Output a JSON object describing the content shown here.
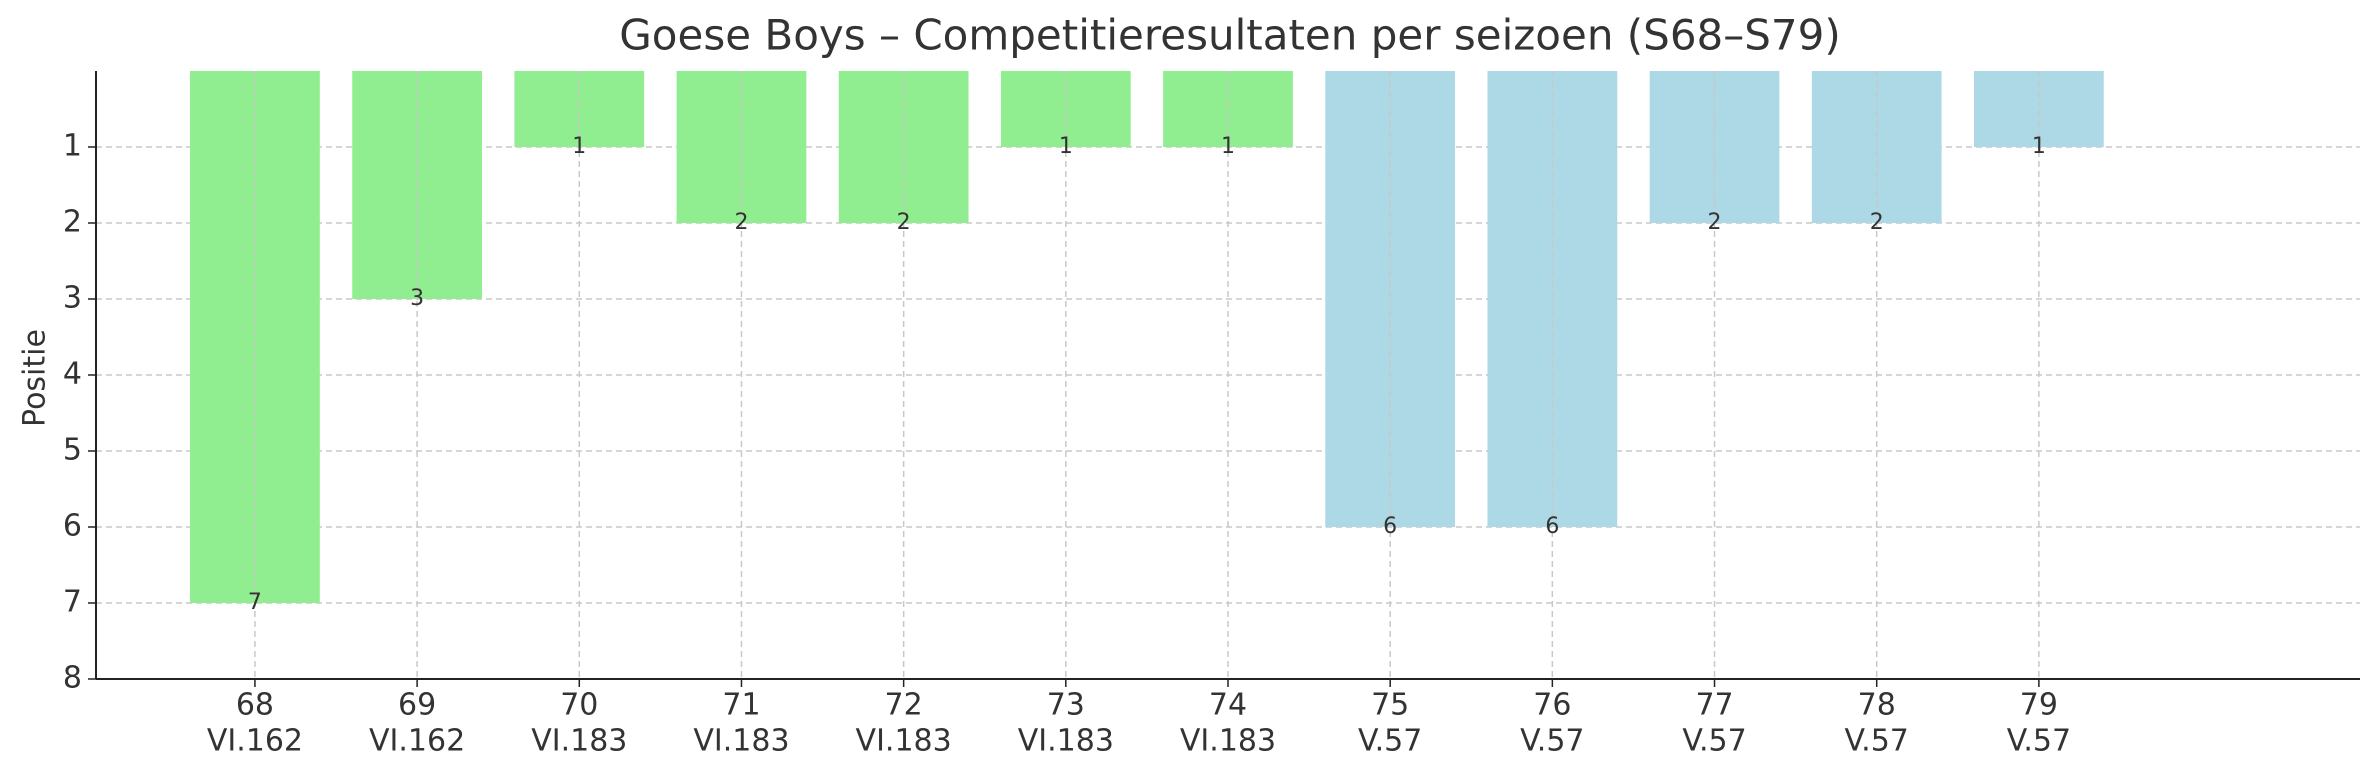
{
  "chart_data": {
    "type": "bar",
    "title": "Goese Boys – Competitieresultaten per seizoen (S68–S79)",
    "y_label": "Positie",
    "categories": [
      "68",
      "69",
      "70",
      "71",
      "72",
      "73",
      "74",
      "75",
      "76",
      "77",
      "78",
      "79"
    ],
    "divisions": [
      "VI.162",
      "VI.162",
      "VI.183",
      "VI.183",
      "VI.183",
      "VI.183",
      "VI.183",
      "V.57",
      "V.57",
      "V.57",
      "V.57",
      "V.57"
    ],
    "values": [
      7,
      3,
      1,
      2,
      2,
      1,
      1,
      6,
      6,
      2,
      2,
      1
    ],
    "colors": [
      "#90ee90",
      "#90ee90",
      "#90ee90",
      "#90ee90",
      "#90ee90",
      "#90ee90",
      "#90ee90",
      "#add8e6",
      "#add8e6",
      "#add8e6",
      "#add8e6",
      "#add8e6"
    ],
    "ylim": [
      0,
      8
    ],
    "yticks": [
      1,
      2,
      3,
      4,
      5,
      6,
      7,
      8
    ],
    "y_inverted": true,
    "grid": true
  }
}
